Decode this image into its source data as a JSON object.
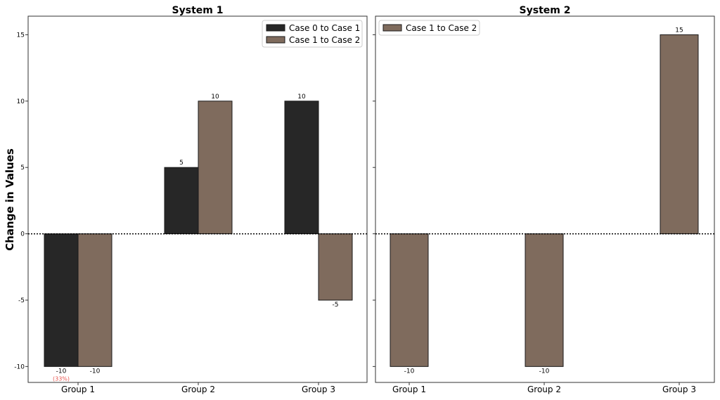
{
  "figure": {
    "ylabel": "Change in Values"
  },
  "chart_data": [
    {
      "type": "bar",
      "title": "System 1",
      "xlabel": "",
      "ylabel": "Change in Values",
      "ylim": [
        -11.2,
        16.4
      ],
      "yticks": [
        -10,
        -5,
        0,
        5,
        10,
        15
      ],
      "categories": [
        "Group 1",
        "Group 2",
        "Group 3"
      ],
      "legend_position": "top-right",
      "grid": false,
      "zero_line": "dotted",
      "series": [
        {
          "name": "Case 0 to Case 1",
          "color": "#272727",
          "values": [
            -10,
            5,
            10
          ]
        },
        {
          "name": "Case 1 to Case 2",
          "color": "#7f6b5d",
          "values": [
            -10,
            10,
            -5
          ]
        }
      ],
      "annotations": [
        {
          "category": "Group 1",
          "series": 0,
          "text": "(33%)",
          "color": "#e8544e"
        }
      ]
    },
    {
      "type": "bar",
      "title": "System 2",
      "xlabel": "",
      "ylabel": "",
      "ylim": [
        -11.2,
        16.4
      ],
      "yticks": [
        -10,
        -5,
        0,
        5,
        10,
        15
      ],
      "categories": [
        "Group 1",
        "Group 2",
        "Group 3"
      ],
      "legend_position": "top-left",
      "grid": false,
      "zero_line": "dotted",
      "series": [
        {
          "name": "Case 1 to Case 2",
          "color": "#7f6b5d",
          "values": [
            -10,
            -10,
            15
          ]
        }
      ],
      "annotations": []
    }
  ]
}
